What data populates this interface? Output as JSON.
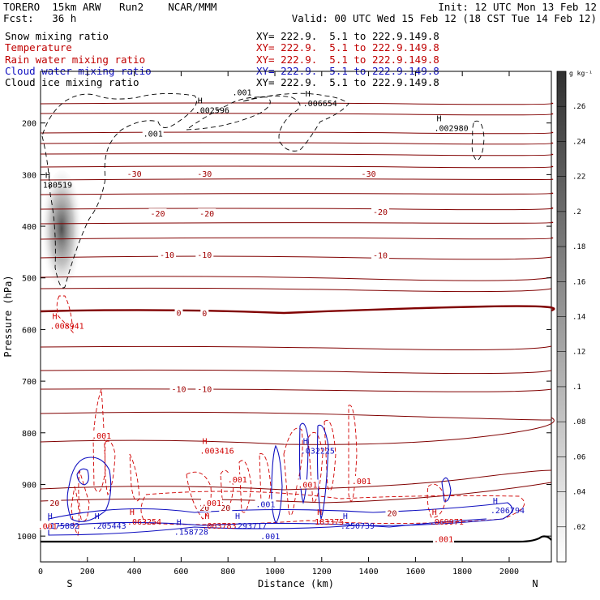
{
  "header": {
    "title_left": "TORERO  15km ARW   Run2    NCAR/MMM",
    "init": "Init: 12 UTC Mon 13 Feb 12",
    "fcst": "Fcst:   36 h",
    "valid": "Valid: 00 UTC Wed 15 Feb 12 (18 CST Tue 14 Feb 12)"
  },
  "legend": [
    {
      "name": "Snow mixing ratio",
      "xy": "XY= 222.9.  5.1 to 222.9.149.8",
      "color": "#000000"
    },
    {
      "name": "Temperature",
      "xy": "XY= 222.9.  5.1 to 222.9.149.8",
      "color": "#c00000"
    },
    {
      "name": "Rain water mixing ratio",
      "xy": "XY= 222.9.  5.1 to 222.9.149.8",
      "color": "#c00000"
    },
    {
      "name": "Cloud water mixing ratio",
      "xy": "XY= 222.9.  5.1 to 222.9.149.8",
      "color": "#1010c0"
    },
    {
      "name": "Cloud ice mixing ratio",
      "xy": "XY= 222.9.  5.1 to 222.9.149.8",
      "color": "#000000"
    }
  ],
  "chart_data": {
    "type": "cross-section",
    "xlabel": "Distance (km)",
    "ylabel": "Pressure (hPa)",
    "xlim": [
      0,
      2180
    ],
    "ylim": [
      1050,
      100
    ],
    "x_ticks": [
      0,
      200,
      400,
      600,
      800,
      1000,
      1200,
      1400,
      1600,
      1800,
      2000
    ],
    "y_ticks": [
      200,
      300,
      400,
      500,
      600,
      700,
      800,
      900,
      1000
    ],
    "end_labels": {
      "left": "S",
      "right": "N"
    },
    "colorbar": {
      "unit": "g kg⁻¹",
      "ticks": [
        ".26",
        ".24",
        ".22",
        ".2",
        ".18",
        ".16",
        ".14",
        ".12",
        ".1",
        ".08",
        ".06",
        ".04",
        ".02"
      ]
    },
    "temperature_labels": [
      {
        "x": 400,
        "p": 298,
        "text": "-30"
      },
      {
        "x": 700,
        "p": 298,
        "text": "-30"
      },
      {
        "x": 1400,
        "p": 298,
        "text": "-30"
      },
      {
        "x": 500,
        "p": 375,
        "text": "-20"
      },
      {
        "x": 710,
        "p": 375,
        "text": "-20"
      },
      {
        "x": 1450,
        "p": 372,
        "text": "-20"
      },
      {
        "x": 540,
        "p": 455,
        "text": "-10"
      },
      {
        "x": 700,
        "p": 455,
        "text": "-10"
      },
      {
        "x": 1450,
        "p": 456,
        "text": "-10"
      },
      {
        "x": 590,
        "p": 567,
        "text": "0"
      },
      {
        "x": 700,
        "p": 568,
        "text": "0"
      },
      {
        "x": 590,
        "p": 715,
        "text": "-10"
      },
      {
        "x": 700,
        "p": 715,
        "text": "-10"
      },
      {
        "x": 60,
        "p": 935,
        "text": "20"
      },
      {
        "x": 700,
        "p": 945,
        "text": "20"
      },
      {
        "x": 790,
        "p": 945,
        "text": "20"
      },
      {
        "x": 1500,
        "p": 955,
        "text": "20"
      }
    ],
    "maxima_labels": [
      {
        "x": 10,
        "p": 310,
        "h": "H",
        "text": "180519",
        "series": "snow"
      },
      {
        "x": 660,
        "p": 165,
        "h": "H",
        "text": ".002596",
        "series": "ice"
      },
      {
        "x": 1120,
        "p": 152,
        "h": "H",
        "text": ".006654",
        "series": "ice"
      },
      {
        "x": 1680,
        "p": 200,
        "h": "H",
        "text": ".002980",
        "series": "ice"
      },
      {
        "x": 40,
        "p": 583,
        "h": "H",
        "text": ".008941",
        "series": "rain"
      },
      {
        "x": 680,
        "p": 825,
        "h": "H",
        "text": ".003416",
        "series": "rain"
      },
      {
        "x": 1110,
        "p": 825,
        "h": "H",
        "text": ".032225",
        "series": "cloud"
      },
      {
        "x": 20,
        "p": 970,
        "h": "H",
        "text": ".175882",
        "series": "cloud"
      },
      {
        "x": 220,
        "p": 970,
        "h": "H",
        "text": ".205443",
        "series": "cloud"
      },
      {
        "x": 370,
        "p": 962,
        "h": "H",
        "text": ".063254",
        "series": "rain"
      },
      {
        "x": 570,
        "p": 982,
        "h": "H",
        "text": ".158728",
        "series": "cloud"
      },
      {
        "x": 690,
        "p": 970,
        "h": "H",
        "text": ".063783",
        "series": "rain"
      },
      {
        "x": 820,
        "p": 970,
        "h": "H",
        "text": ".293717",
        "series": "cloud"
      },
      {
        "x": 1170,
        "p": 962,
        "h": "H",
        "text": "183375",
        "series": "rain"
      },
      {
        "x": 1280,
        "p": 970,
        "h": "H",
        "text": ".250739",
        "series": "cloud"
      },
      {
        "x": 1660,
        "p": 962,
        "h": "H",
        "text": ".069971",
        "series": "rain"
      },
      {
        "x": 1920,
        "p": 940,
        "h": "H",
        "text": ".206794",
        "series": "cloud"
      }
    ],
    "contour_labels": [
      {
        "x": 480,
        "p": 220,
        "text": ".001",
        "series": "ice"
      },
      {
        "x": 860,
        "p": 140,
        "text": ".001",
        "series": "ice"
      },
      {
        "x": 260,
        "p": 805,
        "text": ".001",
        "series": "rain"
      },
      {
        "x": 840,
        "p": 890,
        "text": ".001",
        "series": "rain"
      },
      {
        "x": 730,
        "p": 935,
        "text": ".001",
        "series": "rain"
      },
      {
        "x": 1370,
        "p": 893,
        "text": ".001",
        "series": "rain"
      },
      {
        "x": 1140,
        "p": 900,
        "text": ".001",
        "series": "rain"
      },
      {
        "x": 960,
        "p": 938,
        "text": ".001",
        "series": "cloud"
      },
      {
        "x": 30,
        "p": 980,
        "text": ".001",
        "series": "rain"
      },
      {
        "x": 980,
        "p": 1000,
        "text": ".001",
        "series": "cloud"
      },
      {
        "x": 1720,
        "p": 1005,
        "text": ".001",
        "series": "rain"
      }
    ],
    "series_colors": {
      "snow": "#000000",
      "ice": "#000000",
      "temperature": "#800000",
      "rain": "#d00000",
      "cloud": "#1010c0"
    }
  }
}
